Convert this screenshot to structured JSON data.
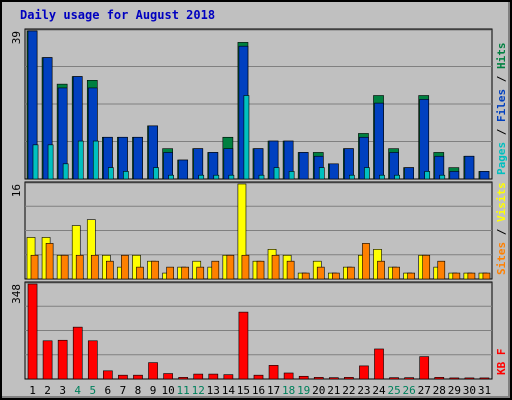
{
  "chart_data": {
    "type": "bar",
    "title": "Daily usage for August 2018",
    "days": [
      1,
      2,
      3,
      4,
      5,
      6,
      7,
      8,
      9,
      10,
      11,
      12,
      13,
      14,
      15,
      16,
      17,
      18,
      19,
      20,
      21,
      22,
      23,
      24,
      25,
      26,
      27,
      28,
      29,
      30,
      31
    ],
    "weekend_days": [
      4,
      5,
      11,
      12,
      18,
      19,
      25,
      26
    ],
    "day_label_colors": {
      "weekday": "#000000",
      "weekend": "#00805c"
    },
    "panels": [
      {
        "id": "hits-files-pages",
        "ymax_label": "39",
        "ymax": 39,
        "legend": [
          {
            "text": "Pages",
            "color": "#00c0c0"
          },
          {
            "text": " / ",
            "color": "#000000"
          },
          {
            "text": "Files",
            "color": "#0040c0"
          },
          {
            "text": " / ",
            "color": "#000000"
          },
          {
            "text": "Hits",
            "color": "#008040"
          }
        ],
        "series": [
          {
            "name": "Hits",
            "color": "#008040",
            "values": [
              39,
              32,
              25,
              27,
              26,
              11,
              11,
              11,
              14,
              8,
              5,
              8,
              7,
              11,
              36,
              8,
              10,
              10,
              7,
              7,
              4,
              8,
              12,
              22,
              8,
              3,
              22,
              7,
              3,
              6,
              2
            ]
          },
          {
            "name": "Files",
            "color": "#0040c0",
            "values": [
              39,
              32,
              24,
              27,
              24,
              11,
              11,
              11,
              14,
              7,
              5,
              8,
              7,
              8,
              35,
              8,
              10,
              10,
              7,
              6,
              4,
              8,
              11,
              20,
              7,
              3,
              21,
              6,
              2,
              6,
              2
            ]
          },
          {
            "name": "Pages",
            "color": "#00c0c0",
            "values": [
              9,
              9,
              4,
              10,
              10,
              3,
              2,
              0,
              3,
              1,
              0,
              1,
              1,
              1,
              22,
              1,
              3,
              2,
              0,
              3,
              0,
              1,
              3,
              1,
              1,
              0,
              2,
              1,
              0,
              0,
              0
            ]
          }
        ]
      },
      {
        "id": "visits-sites",
        "ymax_label": "16",
        "ymax": 16,
        "legend": [
          {
            "text": "Sites",
            "color": "#ff8000"
          },
          {
            "text": " / ",
            "color": "#000000"
          },
          {
            "text": "Visits",
            "color": "#ffff00"
          }
        ],
        "series": [
          {
            "name": "Visits",
            "color": "#ffff00",
            "values": [
              7,
              7,
              4,
              9,
              10,
              4,
              2,
              4,
              3,
              1,
              2,
              3,
              2,
              4,
              16,
              3,
              5,
              4,
              1,
              3,
              1,
              2,
              4,
              5,
              2,
              1,
              4,
              2,
              1,
              1,
              1
            ]
          },
          {
            "name": "Sites",
            "color": "#ff8000",
            "values": [
              4,
              6,
              4,
              4,
              4,
              3,
              4,
              2,
              3,
              2,
              2,
              2,
              3,
              4,
              4,
              3,
              4,
              3,
              1,
              2,
              1,
              2,
              6,
              3,
              2,
              1,
              4,
              3,
              1,
              1,
              1
            ]
          }
        ]
      },
      {
        "id": "kbf",
        "ymax_label": "348",
        "ymax": 348,
        "legend": [
          {
            "text": "KB F",
            "color": "#ff0000"
          }
        ],
        "series": [
          {
            "name": "KB F",
            "color": "#ff0000",
            "values": [
              348,
              140,
              142,
              190,
              140,
              30,
              14,
              14,
              60,
              20,
              6,
              18,
              18,
              16,
              245,
              14,
              50,
              22,
              10,
              6,
              5,
              6,
              48,
              110,
              5,
              5,
              82,
              6,
              4,
              4,
              4
            ]
          }
        ]
      }
    ]
  }
}
